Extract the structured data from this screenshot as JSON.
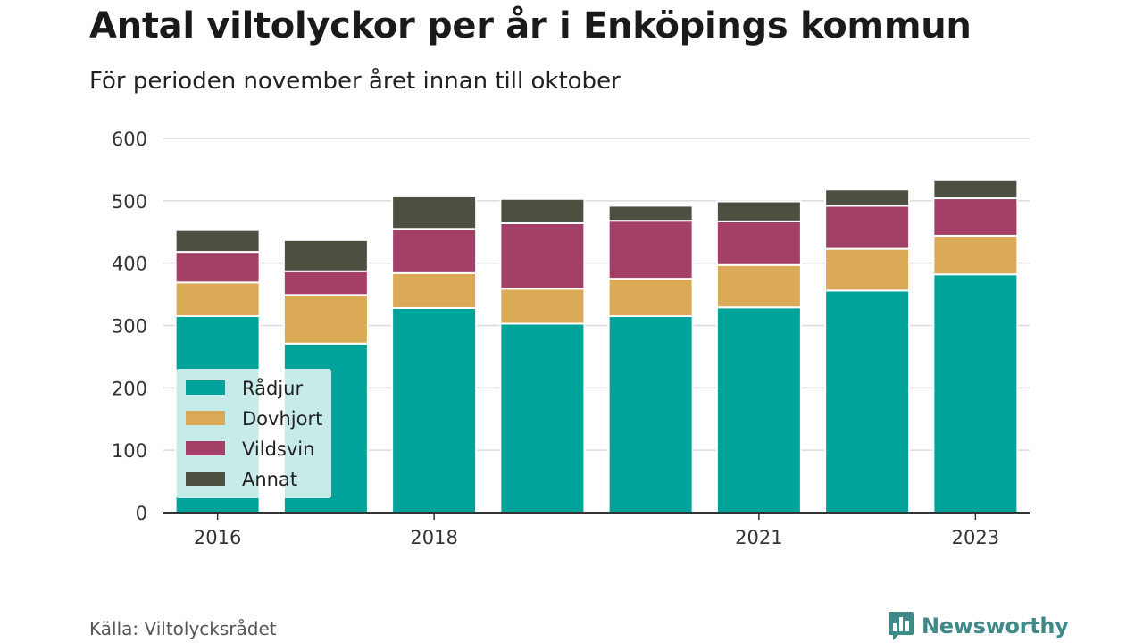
{
  "header": {
    "title": "Antal viltolyckor per år i Enköpings kommun",
    "subtitle": "För perioden november året innan till oktober"
  },
  "footer": {
    "source": "Källa: Viltolycksrådet",
    "brand": "Newsworthy",
    "brand_icon": "bar-chart-logo-icon"
  },
  "chart_data": {
    "type": "bar",
    "stacked": true,
    "categories": [
      "2016",
      "2017",
      "2018",
      "2019",
      "2020",
      "2021",
      "2022",
      "2023"
    ],
    "x_tick_labels": [
      "2016",
      "2018",
      "2021",
      "2023"
    ],
    "series": [
      {
        "name": "Rådjur",
        "color": "#00a39a",
        "values": [
          315,
          271,
          328,
          303,
          315,
          329,
          356,
          382
        ]
      },
      {
        "name": "Dovhjort",
        "color": "#dbaa57",
        "values": [
          54,
          78,
          56,
          56,
          60,
          68,
          67,
          62
        ]
      },
      {
        "name": "Vildsvin",
        "color": "#a43f68",
        "values": [
          49,
          38,
          71,
          105,
          93,
          70,
          69,
          60
        ]
      },
      {
        "name": "Annat",
        "color": "#4d4f41",
        "values": [
          35,
          50,
          52,
          39,
          24,
          32,
          26,
          29
        ]
      }
    ],
    "ylim": [
      0,
      600
    ],
    "yticks": [
      0,
      100,
      200,
      300,
      400,
      500,
      600
    ],
    "grid": true,
    "legend_position": "bottom-left inside plot"
  }
}
